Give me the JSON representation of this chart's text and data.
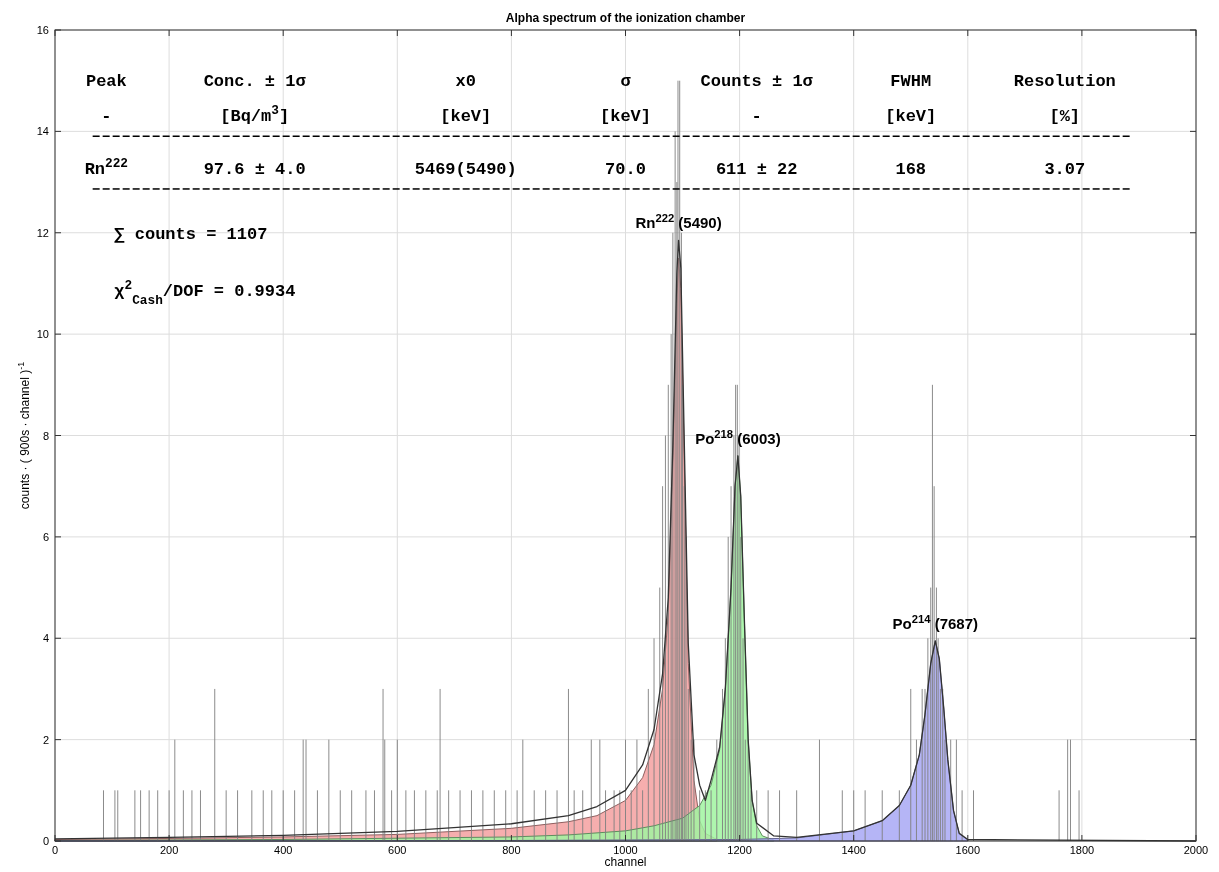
{
  "chart_data": {
    "type": "area",
    "title": "Alpha spectrum of the ionization chamber",
    "xlabel": "channel",
    "ylabel": "counts · ( 900s · channel )$^{-1}$",
    "xlim": [
      0,
      2000
    ],
    "xticks": [
      0,
      200,
      400,
      600,
      800,
      1000,
      1200,
      1400,
      1600,
      1800,
      2000
    ],
    "ylim": [
      0,
      16
    ],
    "yticks": [
      0,
      2,
      4,
      6,
      8,
      10,
      12,
      14,
      16
    ],
    "grid": true,
    "series": [
      {
        "color": "#f5a0a0",
        "x": [
          0,
          200,
          400,
          600,
          800,
          900,
          950,
          1000,
          1030,
          1050,
          1065,
          1075,
          1083,
          1090,
          1093,
          1097,
          1103,
          1110,
          1120,
          1130,
          1140,
          1160
        ],
        "values": [
          0.03,
          0.05,
          0.08,
          0.13,
          0.25,
          0.38,
          0.5,
          0.8,
          1.25,
          1.9,
          3.0,
          4.5,
          7.5,
          10.6,
          11.5,
          10.9,
          7.5,
          3.5,
          1.2,
          0.4,
          0.15,
          0.03
        ]
      },
      {
        "color": "#a0f5a0",
        "x": [
          0,
          400,
          800,
          900,
          1000,
          1050,
          1100,
          1130,
          1150,
          1165,
          1175,
          1185,
          1192,
          1197,
          1202,
          1208,
          1215,
          1222,
          1230,
          1240,
          1260
        ],
        "values": [
          0.01,
          0.03,
          0.08,
          0.12,
          0.2,
          0.3,
          0.45,
          0.7,
          1.1,
          1.8,
          3.0,
          5.0,
          7.0,
          7.6,
          6.8,
          4.5,
          2.0,
          0.8,
          0.3,
          0.1,
          0.02
        ]
      },
      {
        "color": "#a8a8f5",
        "x": [
          0,
          800,
          1200,
          1300,
          1400,
          1450,
          1480,
          1500,
          1515,
          1525,
          1535,
          1543,
          1550,
          1558,
          1565,
          1575,
          1585,
          1600
        ],
        "values": [
          0,
          0.01,
          0.03,
          0.06,
          0.2,
          0.4,
          0.7,
          1.1,
          1.7,
          2.5,
          3.5,
          3.95,
          3.6,
          2.6,
          1.6,
          0.6,
          0.15,
          0.02
        ]
      },
      {
        "type": "bar",
        "color": "#808080",
        "x": [
          85,
          105,
          110,
          140,
          150,
          165,
          180,
          200,
          210,
          225,
          240,
          255,
          280,
          300,
          320,
          345,
          365,
          380,
          400,
          420,
          435,
          440,
          460,
          480,
          500,
          520,
          545,
          560,
          575,
          578,
          590,
          600,
          615,
          630,
          650,
          670,
          675,
          690,
          710,
          730,
          750,
          770,
          790,
          810,
          820,
          840,
          860,
          880,
          900,
          910,
          925,
          940,
          955,
          965,
          980,
          990,
          1000,
          1010,
          1020,
          1030,
          1040,
          1050,
          1060,
          1065,
          1070,
          1075,
          1080,
          1083,
          1087,
          1090,
          1092,
          1095,
          1098,
          1100,
          1103,
          1106,
          1110,
          1115,
          1120,
          1130,
          1140,
          1150,
          1160,
          1170,
          1175,
          1180,
          1185,
          1190,
          1193,
          1196,
          1199,
          1202,
          1206,
          1210,
          1215,
          1220,
          1230,
          1250,
          1270,
          1300,
          1340,
          1380,
          1400,
          1420,
          1450,
          1480,
          1500,
          1510,
          1520,
          1525,
          1530,
          1535,
          1538,
          1541,
          1545,
          1548,
          1552,
          1556,
          1560,
          1570,
          1580,
          1590,
          1610,
          1760,
          1775,
          1780,
          1795
        ],
        "values": [
          1,
          1,
          1,
          1,
          1,
          1,
          1,
          1,
          2,
          1,
          1,
          1,
          3,
          1,
          1,
          1,
          1,
          1,
          1,
          1,
          2,
          2,
          1,
          2,
          1,
          1,
          1,
          1,
          3,
          2,
          1,
          2,
          1,
          1,
          1,
          1,
          3,
          1,
          1,
          1,
          1,
          1,
          1,
          1,
          2,
          1,
          1,
          1,
          3,
          1,
          1,
          2,
          2,
          1,
          1,
          1,
          2,
          1,
          2,
          1,
          3,
          4,
          5,
          7,
          8,
          9,
          10,
          12,
          14,
          13,
          15,
          15,
          12,
          9,
          7,
          6,
          3,
          2,
          2,
          1,
          1,
          1,
          2,
          3,
          4,
          6,
          7,
          8,
          9,
          9,
          8,
          6,
          4,
          2,
          2,
          1,
          1,
          1,
          1,
          1,
          2,
          1,
          1,
          1,
          1,
          1,
          3,
          2,
          3,
          3,
          4,
          5,
          9,
          7,
          5,
          4,
          3,
          3,
          2,
          2,
          2,
          1,
          1,
          1,
          2,
          2,
          1
        ]
      },
      {
        "type": "line",
        "color": "#333333",
        "x": [
          0,
          200,
          400,
          600,
          800,
          900,
          950,
          1000,
          1030,
          1050,
          1065,
          1075,
          1083,
          1090,
          1093,
          1097,
          1103,
          1110,
          1120,
          1130,
          1140,
          1150,
          1165,
          1175,
          1185,
          1192,
          1197,
          1202,
          1208,
          1215,
          1222,
          1230,
          1260,
          1300,
          1400,
          1450,
          1480,
          1500,
          1515,
          1525,
          1535,
          1543,
          1550,
          1558,
          1565,
          1575,
          1585,
          1600,
          2000
        ],
        "values": [
          0.04,
          0.07,
          0.11,
          0.19,
          0.34,
          0.5,
          0.68,
          1.0,
          1.5,
          2.2,
          3.3,
          4.8,
          7.8,
          11.2,
          11.85,
          11.3,
          7.9,
          3.9,
          1.7,
          1.1,
          0.8,
          1.2,
          1.85,
          3.0,
          5.0,
          7.0,
          7.6,
          6.8,
          4.5,
          2.0,
          0.8,
          0.35,
          0.1,
          0.07,
          0.2,
          0.4,
          0.7,
          1.1,
          1.7,
          2.5,
          3.5,
          3.95,
          3.6,
          2.6,
          1.6,
          0.6,
          0.15,
          0.03,
          0
        ]
      }
    ],
    "annotations": [
      "Peak",
      "Conc. ± 1σ",
      "x0",
      "σ",
      "Counts ± 1σ",
      "FWHM",
      "Resolution",
      "-",
      "[Bq/m$^{3}$]",
      "[keV]",
      "[keV]",
      "-",
      "[keV]",
      "[%]",
      "Rn$^{222}$",
      "97.6 ± 4.0",
      "5469(5490)",
      "70.0",
      "611 ± 22",
      "168",
      "3.07",
      "∑ counts = 1107",
      "χ$^{2}$$_{Cash}$/DOF = 0.9934",
      {
        "text": "Rn$^{222}$ (5490)",
        "x": 1093,
        "y": 11.85
      },
      {
        "text": "Po$^{218}$ (6003)",
        "x": 1197,
        "y": 7.6
      },
      {
        "text": "Po$^{214}$ (7687)",
        "x": 1543,
        "y": 3.95
      }
    ]
  }
}
